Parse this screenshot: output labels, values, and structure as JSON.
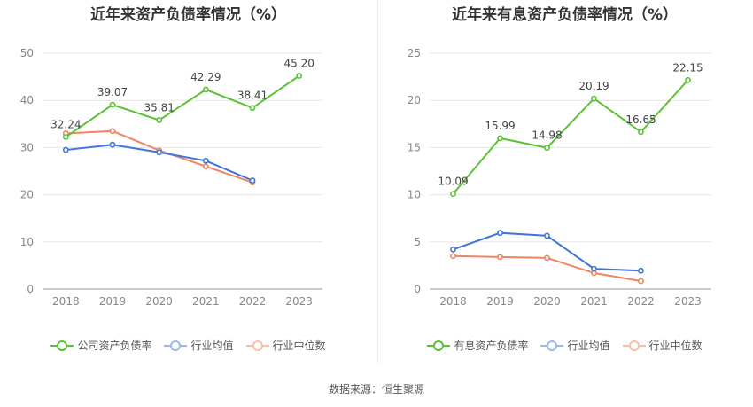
{
  "source_text": "数据来源：恒生聚源",
  "chart_data": [
    {
      "type": "line",
      "title": "近年来资产负债率情况（%）",
      "categories": [
        "2018",
        "2019",
        "2020",
        "2021",
        "2022",
        "2023"
      ],
      "ylim": [
        0,
        50
      ],
      "yticks": [
        0,
        10,
        20,
        30,
        40,
        50
      ],
      "grid": true,
      "legend_position": "bottom",
      "series": [
        {
          "name": "公司资产负债率",
          "color": "#5bc236",
          "values": [
            32.24,
            39.07,
            35.81,
            42.29,
            38.41,
            45.2
          ],
          "labels": [
            "32.24",
            "39.07",
            "35.81",
            "42.29",
            "38.41",
            "45.20"
          ]
        },
        {
          "name": "行业均值",
          "color": "#3f74dc",
          "values": [
            29.5,
            30.6,
            29.0,
            27.2,
            23.0,
            null
          ]
        },
        {
          "name": "行业中位数",
          "color": "#f0855f",
          "values": [
            33.0,
            33.5,
            29.4,
            26.0,
            22.6,
            null
          ]
        }
      ]
    },
    {
      "type": "line",
      "title": "近年来有息资产负债率情况（%）",
      "categories": [
        "2018",
        "2019",
        "2020",
        "2021",
        "2022",
        "2023"
      ],
      "ylim": [
        0,
        25
      ],
      "yticks": [
        0,
        5,
        10,
        15,
        20,
        25
      ],
      "grid": true,
      "legend_position": "bottom",
      "series": [
        {
          "name": "有息资产负债率",
          "color": "#5bc236",
          "values": [
            10.09,
            15.99,
            14.98,
            20.19,
            16.65,
            22.15
          ],
          "labels": [
            "10.09",
            "15.99",
            "14.98",
            "20.19",
            "16.65",
            "22.15"
          ]
        },
        {
          "name": "行业均值",
          "color": "#3f74dc",
          "values": [
            4.2,
            5.95,
            5.65,
            2.15,
            1.95,
            null
          ]
        },
        {
          "name": "行业中位数",
          "color": "#f0855f",
          "values": [
            3.5,
            3.4,
            3.3,
            1.7,
            0.85,
            null
          ]
        }
      ]
    }
  ]
}
